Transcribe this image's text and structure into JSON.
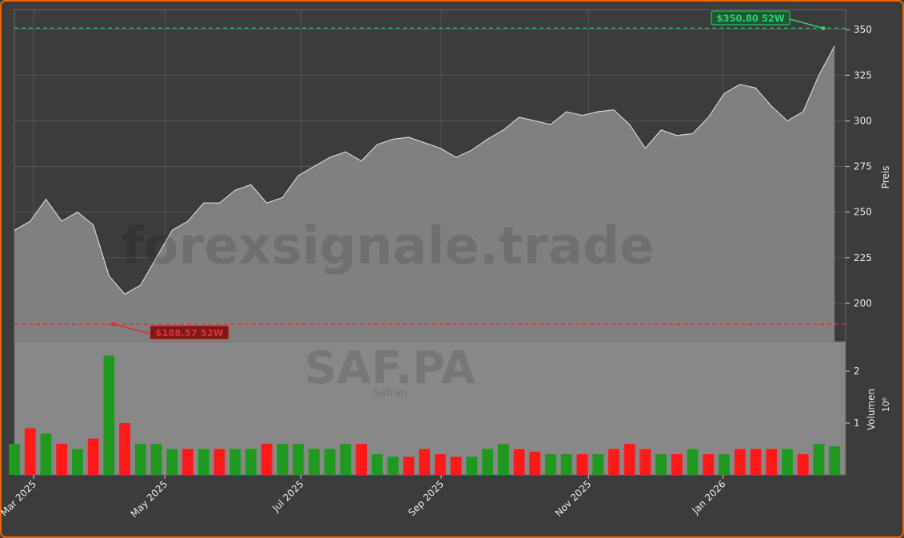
{
  "chart_data": [
    {
      "type": "area",
      "title": "SAF.PA",
      "subtitle": "Safran",
      "watermark": "forexsignale.trade",
      "ylabel": "Preis",
      "color": "#808080",
      "line_color": "#d0d0d0",
      "values": [
        240,
        245,
        257,
        245,
        250,
        243,
        215,
        205,
        210,
        225,
        240,
        245,
        255,
        255,
        262,
        265,
        255,
        258,
        270,
        275,
        280,
        283,
        278,
        287,
        290,
        291,
        288,
        285,
        280,
        284,
        290,
        295,
        302,
        300,
        298,
        305,
        303,
        305,
        306,
        298,
        285,
        295,
        292,
        293,
        302,
        315,
        320,
        318,
        308,
        300,
        305,
        325,
        341
      ],
      "ylim": [
        179,
        361
      ],
      "yticks": [
        200,
        225,
        250,
        275,
        300,
        325,
        350
      ],
      "xlim": [
        0,
        52.7
      ],
      "xticks": [
        {
          "value": 1.22,
          "label": "Mar 2025"
        },
        {
          "value": 9.54,
          "label": "May 2025"
        },
        {
          "value": 18.17,
          "label": "Jul 2025"
        },
        {
          "value": 27.06,
          "label": "Sep 2025"
        },
        {
          "value": 36.4,
          "label": "Nov 2025"
        },
        {
          "value": 44.92,
          "label": "Jan 2026"
        }
      ],
      "grid": true,
      "annotations": [
        {
          "text": "$350.80 52W",
          "value": 350.8,
          "color": "#2ecc71"
        },
        {
          "text": "$188.57 52W",
          "value": 188.57,
          "color": "#e03030"
        }
      ]
    },
    {
      "type": "bar",
      "ylabel": "Volumen",
      "scale_label": "10⁶",
      "values": [
        0.6,
        0.9,
        0.8,
        0.6,
        0.5,
        0.7,
        2.3,
        1.0,
        0.6,
        0.6,
        0.5,
        0.5,
        0.5,
        0.5,
        0.5,
        0.5,
        0.6,
        0.6,
        0.6,
        0.5,
        0.5,
        0.6,
        0.6,
        0.4,
        0.35,
        0.35,
        0.5,
        0.4,
        0.35,
        0.35,
        0.5,
        0.6,
        0.5,
        0.45,
        0.4,
        0.4,
        0.4,
        0.4,
        0.5,
        0.6,
        0.5,
        0.4,
        0.4,
        0.5,
        0.4,
        0.4,
        0.5,
        0.5,
        0.5,
        0.5,
        0.4,
        0.6,
        0.55
      ],
      "colors": [
        "#1f9a1f",
        "#ff1a1a",
        "#1f9a1f",
        "#ff1a1a",
        "#1f9a1f",
        "#ff1a1a",
        "#1f9a1f",
        "#ff1a1a",
        "#1f9a1f",
        "#1f9a1f",
        "#1f9a1f",
        "#ff1a1a",
        "#1f9a1f",
        "#ff1a1a",
        "#1f9a1f",
        "#1f9a1f",
        "#ff1a1a",
        "#1f9a1f",
        "#1f9a1f",
        "#1f9a1f",
        "#1f9a1f",
        "#1f9a1f",
        "#ff1a1a",
        "#1f9a1f",
        "#1f9a1f",
        "#ff1a1a",
        "#ff1a1a",
        "#ff1a1a",
        "#ff1a1a",
        "#1f9a1f",
        "#1f9a1f",
        "#1f9a1f",
        "#ff1a1a",
        "#ff1a1a",
        "#1f9a1f",
        "#1f9a1f",
        "#ff1a1a",
        "#1f9a1f",
        "#ff1a1a",
        "#ff1a1a",
        "#ff1a1a",
        "#1f9a1f",
        "#ff1a1a",
        "#1f9a1f",
        "#ff1a1a",
        "#1f9a1f",
        "#ff1a1a",
        "#ff1a1a",
        "#ff1a1a",
        "#1f9a1f",
        "#ff1a1a",
        "#1f9a1f",
        "#1f9a1f"
      ],
      "ylim": [
        0,
        2.57
      ],
      "yticks": [
        1,
        2
      ]
    }
  ]
}
